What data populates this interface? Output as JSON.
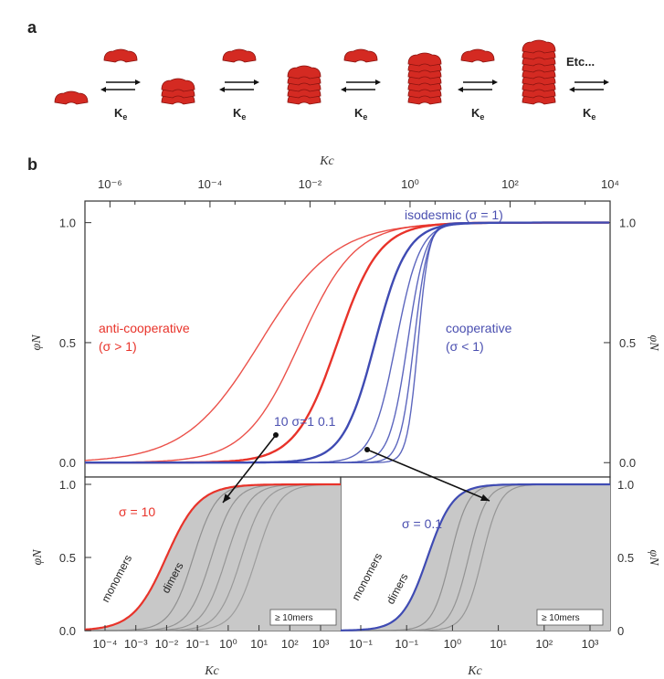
{
  "panel_a": {
    "label": "a",
    "k_label": "K",
    "k_sub": "e",
    "etc_label": "Etc..."
  },
  "colors": {
    "red": "#e8332a",
    "blue": "#3f4bb3",
    "gray_fill": "#c8c8c8",
    "dark_gray": "#8a8a8a",
    "disc": "#d42a22"
  },
  "chart_data": [
    {
      "type": "line",
      "panel": "b",
      "label": "b",
      "title": "",
      "xlabel_top": "Kc",
      "ylabel_left": "φN",
      "ylabel_right": "φN",
      "x_scale": "log",
      "x_ticks": [
        "10⁻⁶",
        "10⁻⁴",
        "10⁻²",
        "10⁰",
        "10²",
        "10⁴"
      ],
      "xlim": [
        -6.5,
        4
      ],
      "y_ticks": [
        "0.0",
        "0.5",
        "1.0"
      ],
      "ylim": [
        -0.06,
        1.09
      ],
      "annotations": {
        "isodesmic": "isodesmic (σ = 1)",
        "anticooperative": [
          "anti-cooperative",
          "(σ > 1)"
        ],
        "cooperative": [
          "cooperative",
          "(σ < 1)"
        ],
        "sigma_range": "10   σ=1   0.1"
      },
      "series": [
        {
          "color": "red",
          "sigma": 1000,
          "log_kc_half": -3.0,
          "width": 0.75
        },
        {
          "color": "red",
          "sigma": 100,
          "log_kc_half": -2.2,
          "width": 0.55
        },
        {
          "color": "red",
          "sigma": 10,
          "log_kc_half": -1.45,
          "width": 0.42
        },
        {
          "color": "blue",
          "sigma": 1,
          "log_kc_half": -0.7,
          "width": 0.32
        },
        {
          "color": "blue",
          "sigma": 0.1,
          "log_kc_half": -0.28,
          "width": 0.24
        },
        {
          "color": "blue",
          "sigma": 0.01,
          "log_kc_half": -0.05,
          "width": 0.18
        },
        {
          "color": "blue",
          "sigma": 0.001,
          "log_kc_half": 0.08,
          "width": 0.14
        },
        {
          "color": "blue",
          "sigma": 0.0001,
          "log_kc_half": 0.16,
          "width": 0.11
        }
      ]
    },
    {
      "type": "area",
      "panel": "b-inset-left",
      "xlabel": "Kc",
      "ylabel": "φN",
      "x_scale": "log",
      "x_ticks": [
        "10⁻⁴",
        "10⁻³",
        "10⁻²",
        "10⁻¹",
        "10⁰",
        "10¹",
        "10²",
        "10³"
      ],
      "xlim": [
        -4.8,
        3.7
      ],
      "y_ticks": [
        "0.0",
        "0.5",
        "1.0"
      ],
      "ylim": [
        0,
        1.05
      ],
      "sigma_label": "σ = 10",
      "band_labels": [
        "monomers",
        "dimers"
      ],
      "legend": "≥ 10mers",
      "curve_color": "red"
    },
    {
      "type": "area",
      "panel": "b-inset-right",
      "xlabel": "Kc",
      "ylabel": "φN",
      "x_scale": "log",
      "x_ticks": [
        "10⁻¹",
        "10⁻¹",
        "10⁰",
        "10¹",
        "10²",
        "10³"
      ],
      "xlim": [
        -2.3,
        3.6
      ],
      "y_ticks": [
        "0",
        "0.5",
        "1.0"
      ],
      "ylim": [
        0,
        1.05
      ],
      "sigma_label": "σ = 0.1",
      "band_labels": [
        "monomers",
        "dimers"
      ],
      "legend": "≥ 10mers",
      "curve_color": "blue"
    }
  ]
}
